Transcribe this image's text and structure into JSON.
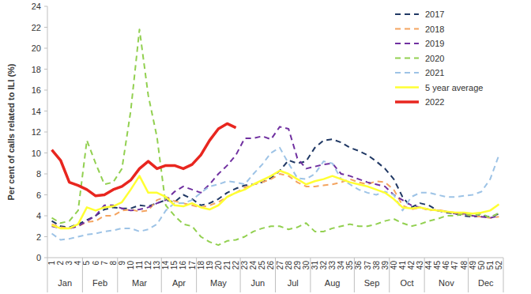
{
  "chart_data": {
    "type": "line",
    "y_label": "Per cent of calls related to ILI (%)",
    "x": [
      1,
      2,
      3,
      4,
      5,
      6,
      7,
      8,
      9,
      10,
      11,
      12,
      13,
      14,
      15,
      16,
      17,
      18,
      19,
      20,
      21,
      22,
      23,
      24,
      25,
      26,
      27,
      28,
      29,
      30,
      31,
      32,
      33,
      34,
      35,
      36,
      37,
      38,
      39,
      40,
      41,
      42,
      43,
      44,
      45,
      46,
      47,
      48,
      49,
      50,
      51,
      52
    ],
    "xlim": [
      0.5,
      52.5
    ],
    "xticks": [
      1,
      2,
      3,
      4,
      5,
      6,
      7,
      8,
      9,
      10,
      11,
      12,
      13,
      14,
      15,
      16,
      17,
      18,
      19,
      20,
      21,
      22,
      23,
      24,
      25,
      26,
      27,
      28,
      29,
      30,
      31,
      32,
      33,
      34,
      35,
      36,
      37,
      38,
      39,
      40,
      41,
      42,
      43,
      44,
      45,
      46,
      47,
      48,
      49,
      50,
      51,
      52
    ],
    "ylim": [
      0,
      24
    ],
    "yticks": [
      0,
      2,
      4,
      6,
      8,
      10,
      12,
      14,
      16,
      18,
      20,
      22,
      24
    ],
    "grid": false,
    "legend": "top-right",
    "annotations": [
      {
        "text": "Jan",
        "from": 1,
        "to": 4
      },
      {
        "text": "Feb",
        "from": 5,
        "to": 8
      },
      {
        "text": "Mar",
        "from": 9,
        "to": 13
      },
      {
        "text": "Apr",
        "from": 14,
        "to": 17
      },
      {
        "text": "May",
        "from": 18,
        "to": 22
      },
      {
        "text": "Jun",
        "from": 23,
        "to": 26
      },
      {
        "text": "Jul",
        "from": 27,
        "to": 30
      },
      {
        "text": "Aug",
        "from": 31,
        "to": 35
      },
      {
        "text": "Sep",
        "from": 36,
        "to": 39
      },
      {
        "text": "Oct",
        "from": 40,
        "to": 43
      },
      {
        "text": "Nov",
        "from": 44,
        "to": 48
      },
      {
        "text": "Dec",
        "from": 49,
        "to": 52
      }
    ],
    "series": [
      {
        "name": "2017",
        "color": "#203864",
        "line_style": "dashed",
        "values": [
          3.5,
          3.0,
          2.9,
          3.2,
          3.6,
          4.0,
          4.6,
          4.8,
          4.7,
          4.7,
          5.0,
          4.9,
          5.2,
          5.5,
          5.3,
          6.0,
          5.6,
          5.0,
          5.2,
          5.6,
          6.2,
          6.6,
          6.9,
          7.0,
          7.2,
          7.6,
          8.3,
          9.3,
          9.0,
          9.2,
          10.5,
          11.2,
          11.3,
          11.0,
          10.5,
          10.2,
          9.8,
          9.2,
          8.5,
          7.5,
          5.8,
          4.8,
          5.2,
          5.0,
          4.5,
          4.3,
          4.2,
          4.0,
          3.9,
          4.0,
          3.9,
          4.2
        ]
      },
      {
        "name": "2018",
        "color": "#f4a460",
        "line_style": "dashed",
        "values": [
          3.2,
          2.9,
          2.8,
          3.0,
          3.4,
          3.5,
          4.0,
          4.0,
          4.5,
          4.6,
          4.4,
          4.5,
          5.5,
          5.8,
          5.4,
          5.2,
          5.0,
          4.8,
          5.0,
          5.3,
          5.8,
          6.2,
          6.7,
          7.0,
          7.2,
          7.5,
          8.0,
          7.8,
          7.2,
          6.8,
          6.8,
          6.9,
          7.0,
          7.2,
          7.5,
          7.2,
          7.0,
          7.3,
          7.2,
          6.5,
          5.0,
          4.6,
          4.8,
          4.5,
          4.6,
          4.4,
          4.3,
          4.1,
          4.0,
          3.9,
          3.8,
          3.9
        ]
      },
      {
        "name": "2019",
        "color": "#7030a0",
        "line_style": "dashed",
        "values": [
          3.0,
          2.8,
          2.8,
          3.0,
          3.5,
          4.0,
          5.0,
          5.0,
          4.7,
          4.5,
          4.6,
          4.8,
          5.2,
          5.5,
          6.3,
          6.8,
          6.5,
          6.2,
          7.0,
          8.0,
          8.8,
          9.8,
          11.4,
          11.4,
          11.6,
          11.3,
          12.5,
          12.3,
          9.5,
          8.5,
          8.7,
          8.9,
          9.0,
          8.0,
          7.8,
          7.5,
          7.2,
          7.0,
          6.8,
          6.0,
          5.5,
          5.0,
          4.8,
          4.6,
          4.5,
          4.4,
          4.2,
          4.2,
          4.0,
          3.9,
          3.8,
          4.0
        ]
      },
      {
        "name": "2020",
        "color": "#92d050",
        "line_style": "dashed",
        "values": [
          3.8,
          3.3,
          3.5,
          4.5,
          11.2,
          9.0,
          7.0,
          7.2,
          8.5,
          14.0,
          21.8,
          15.5,
          11.5,
          5.0,
          4.0,
          3.2,
          3.0,
          2.0,
          1.5,
          1.2,
          1.6,
          1.7,
          2.0,
          2.5,
          2.8,
          3.0,
          3.0,
          2.7,
          2.9,
          3.3,
          2.5,
          2.5,
          2.8,
          3.0,
          3.2,
          3.0,
          3.0,
          3.2,
          3.5,
          3.7,
          3.3,
          3.0,
          3.2,
          3.5,
          3.7,
          4.0,
          4.0,
          4.2,
          4.0,
          4.2,
          3.8,
          4.3
        ]
      },
      {
        "name": "2021",
        "color": "#9dc3e6",
        "line_style": "dashed",
        "values": [
          2.3,
          1.7,
          1.8,
          2.0,
          2.2,
          2.3,
          2.5,
          2.6,
          2.8,
          2.8,
          2.5,
          2.7,
          3.2,
          4.5,
          5.2,
          5.2,
          5.5,
          6.2,
          6.8,
          7.0,
          7.3,
          7.2,
          7.0,
          8.0,
          8.9,
          10.0,
          10.5,
          9.0,
          7.6,
          7.5,
          8.0,
          9.2,
          9.0,
          7.5,
          7.0,
          6.5,
          6.2,
          6.0,
          6.3,
          6.0,
          4.5,
          5.8,
          6.2,
          6.2,
          6.0,
          5.8,
          5.8,
          5.9,
          6.0,
          6.3,
          7.5,
          9.8
        ]
      },
      {
        "name": "5 year average",
        "color": "#ffff33",
        "line_style": "solid",
        "values": [
          3.1,
          2.8,
          2.8,
          3.2,
          4.8,
          4.5,
          4.8,
          4.9,
          5.3,
          6.5,
          7.8,
          6.2,
          6.2,
          5.8,
          5.0,
          4.9,
          5.2,
          4.8,
          4.6,
          5.0,
          5.8,
          6.2,
          6.5,
          7.0,
          7.4,
          7.8,
          8.3,
          8.0,
          7.5,
          7.0,
          7.3,
          7.5,
          7.8,
          7.5,
          7.2,
          7.0,
          6.8,
          6.5,
          6.2,
          5.6,
          4.8,
          4.7,
          4.8,
          4.6,
          4.5,
          4.4,
          4.3,
          4.3,
          4.2,
          4.3,
          4.5,
          5.1
        ]
      },
      {
        "name": "2022",
        "color": "#e8261f",
        "line_style": "solid",
        "values": [
          10.3,
          9.3,
          7.2,
          6.9,
          6.5,
          5.9,
          6.0,
          6.5,
          6.8,
          7.4,
          8.5,
          9.2,
          8.5,
          8.8,
          8.8,
          8.5,
          8.9,
          9.8,
          11.2,
          12.3,
          12.8,
          12.4,
          null,
          null,
          null,
          null,
          null,
          null,
          null,
          null,
          null,
          null,
          null,
          null,
          null,
          null,
          null,
          null,
          null,
          null,
          null,
          null,
          null,
          null,
          null,
          null,
          null,
          null,
          null,
          null,
          null,
          null
        ]
      }
    ]
  }
}
